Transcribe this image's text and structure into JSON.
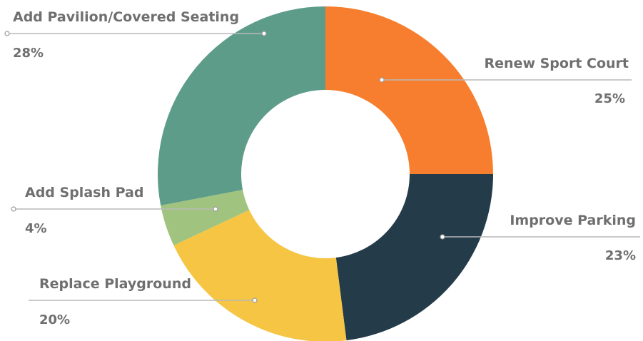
{
  "chart_data": {
    "type": "pie",
    "donut": true,
    "categories": [
      "Renew Sport Court",
      "Improve Parking",
      "Replace Playground",
      "Add Splash Pad",
      "Add Pavilion/Covered Seating"
    ],
    "values": [
      25,
      23,
      20,
      4,
      28
    ],
    "labels": [
      "25%",
      "23%",
      "20%",
      "4%",
      "28%"
    ],
    "colors": [
      "#f77e2e",
      "#243b4a",
      "#f5c543",
      "#a0c47f",
      "#5e9c8a"
    ],
    "title": "",
    "legend": "none",
    "start_angle": "top, clockwise"
  }
}
